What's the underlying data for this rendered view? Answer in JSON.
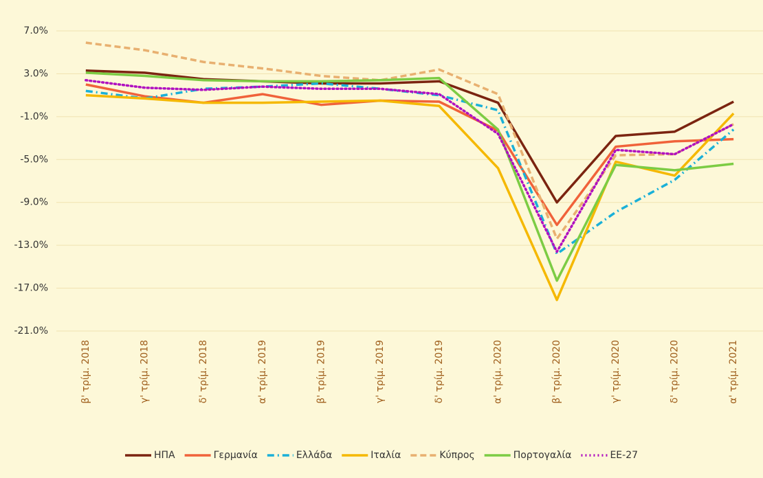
{
  "chart_data": {
    "type": "line",
    "categories": [
      "β' τρίμ. 2018",
      "γ' τρίμ. 2018",
      "δ' τρίμ. 2018",
      "α' τρίμ. 2019",
      "β' τρίμ. 2019",
      "γ' τρίμ. 2019",
      "δ' τρίμ. 2019",
      "α' τρίμ. 2020",
      "β' τρίμ. 2020",
      "γ' τρίμ. 2020",
      "δ' τρίμ. 2020",
      "α' τρίμ. 2021"
    ],
    "series": [
      {
        "name": "ΗΠΑ",
        "color": "#7b2410",
        "style": "solid",
        "values": [
          3.3,
          3.1,
          2.5,
          2.3,
          2.1,
          2.1,
          2.3,
          0.3,
          -9.0,
          -2.8,
          -2.4,
          0.4
        ]
      },
      {
        "name": "Γερμανία",
        "color": "#f0623a",
        "style": "solid",
        "values": [
          2.0,
          0.9,
          0.3,
          1.1,
          0.1,
          0.5,
          0.4,
          -2.3,
          -11.1,
          -3.8,
          -3.3,
          -3.1
        ]
      },
      {
        "name": "Ελλάδα",
        "color": "#1ab0d8",
        "style": "dashdot",
        "values": [
          1.4,
          0.7,
          1.6,
          1.8,
          2.1,
          1.6,
          1.0,
          -0.4,
          -13.8,
          -9.9,
          -6.9,
          -2.2
        ]
      },
      {
        "name": "Ιταλία",
        "color": "#f5b800",
        "style": "solid",
        "values": [
          1.0,
          0.7,
          0.3,
          0.3,
          0.4,
          0.5,
          0.0,
          -5.8,
          -18.1,
          -5.2,
          -6.5,
          -0.7
        ]
      },
      {
        "name": "Κύπρος",
        "color": "#e8b070",
        "style": "dashed",
        "values": [
          5.9,
          5.2,
          4.1,
          3.5,
          2.8,
          2.4,
          3.4,
          1.1,
          -12.4,
          -4.6,
          -4.5,
          -1.7
        ]
      },
      {
        "name": "Πορτογαλία",
        "color": "#7ccc44",
        "style": "solid",
        "values": [
          3.1,
          2.8,
          2.4,
          2.3,
          2.3,
          2.4,
          2.6,
          -2.2,
          -16.3,
          -5.5,
          -6.0,
          -5.4
        ]
      },
      {
        "name": "ΕΕ-27",
        "color": "#b010c0",
        "style": "dotted",
        "values": [
          2.4,
          1.7,
          1.5,
          1.8,
          1.6,
          1.6,
          1.1,
          -2.6,
          -13.6,
          -4.1,
          -4.5,
          -1.7
        ]
      }
    ],
    "ylim": [
      -21,
      7
    ],
    "yticks": [
      {
        "value": 7,
        "label": "7.0%"
      },
      {
        "value": 3,
        "label": "3.0%"
      },
      {
        "value": -1,
        "label": "-1.0%"
      },
      {
        "value": -5,
        "label": "-5.0%"
      },
      {
        "value": -9,
        "label": "-9.0%"
      },
      {
        "value": -13,
        "label": "-13.0%"
      },
      {
        "value": -17,
        "label": "-17.0%"
      },
      {
        "value": -21,
        "label": "-21.0%"
      }
    ],
    "grid": true,
    "legend": "bottom"
  }
}
